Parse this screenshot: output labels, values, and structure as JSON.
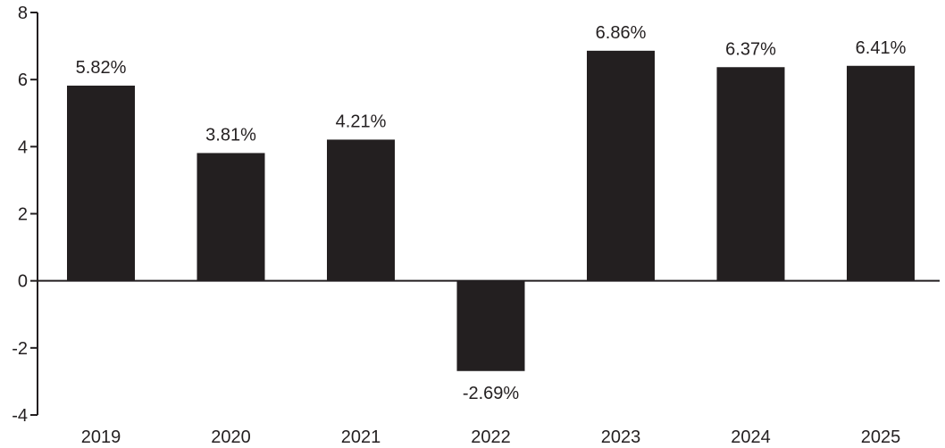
{
  "chart_data": {
    "type": "bar",
    "categories": [
      "2019",
      "2020",
      "2021",
      "2022",
      "2023",
      "2024",
      "2025"
    ],
    "values": [
      5.82,
      3.81,
      4.21,
      -2.69,
      6.86,
      6.37,
      6.41
    ],
    "data_labels": [
      "5.82%",
      "3.81%",
      "4.21%",
      "-2.69%",
      "6.86%",
      "6.37%",
      "6.41%"
    ],
    "yticks": [
      -4,
      -2,
      0,
      2,
      4,
      6,
      8
    ],
    "ylim": [
      -4,
      8
    ],
    "grid": false,
    "legend": "none",
    "bar_color": "#231f20",
    "axis_color": "#231f20"
  }
}
